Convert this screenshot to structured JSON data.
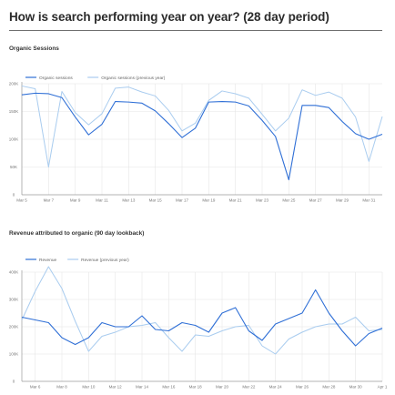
{
  "page": {
    "title": "How is search performing year on year? (28 day period)"
  },
  "colors": {
    "current": "#2f6fd6",
    "previous": "#a9ccef",
    "grid": "#e6e6e6",
    "axis": "#9a9a9a"
  },
  "chart_data": [
    {
      "type": "line",
      "title": "Organic Sessions",
      "categories": [
        "Mar 5",
        "Mar 6",
        "Mar 7",
        "Mar 8",
        "Mar 9",
        "Mar 10",
        "Mar 11",
        "Mar 12",
        "Mar 13",
        "Mar 14",
        "Mar 15",
        "Mar 16",
        "Mar 17",
        "Mar 18",
        "Mar 19",
        "Mar 20",
        "Mar 21",
        "Mar 22",
        "Mar 23",
        "Mar 24",
        "Mar 25",
        "Mar 26",
        "Mar 27",
        "Mar 28",
        "Mar 29",
        "Mar 30",
        "Mar 31",
        "Apr 1"
      ],
      "tick_labels": [
        "Mar 5",
        "Mar 7",
        "Mar 9",
        "Mar 11",
        "Mar 13",
        "Mar 15",
        "Mar 17",
        "Mar 19",
        "Mar 21",
        "Mar 23",
        "Mar 25",
        "Mar 27",
        "Mar 29",
        "Mar 31"
      ],
      "y_ticks": [
        "0",
        "50K",
        "100K",
        "150K",
        "200K"
      ],
      "ylim": [
        0,
        200000
      ],
      "legend": "top-left",
      "grid": true,
      "series": [
        {
          "name": "Organic sessions",
          "role": "current",
          "values": [
            180000,
            183000,
            182000,
            175000,
            140000,
            108000,
            127000,
            168000,
            167000,
            165000,
            151000,
            128000,
            103000,
            120000,
            167000,
            168000,
            167000,
            160000,
            134000,
            105000,
            27000,
            161000,
            161000,
            157000,
            132000,
            110000,
            100000,
            109000
          ]
        },
        {
          "name": "Organic sessions (previous year)",
          "role": "previous",
          "values": [
            196000,
            191000,
            50000,
            186000,
            148000,
            126000,
            146000,
            192000,
            194000,
            185000,
            178000,
            152000,
            115000,
            129000,
            170000,
            187000,
            182000,
            174000,
            145000,
            115000,
            138000,
            189000,
            179000,
            185000,
            174000,
            140000,
            60000,
            141000
          ]
        }
      ]
    },
    {
      "type": "line",
      "title": "Revenue attributed to organic (90 day lookback)",
      "categories": [
        "Mar 5",
        "Mar 6",
        "Mar 7",
        "Mar 8",
        "Mar 9",
        "Mar 10",
        "Mar 11",
        "Mar 12",
        "Mar 13",
        "Mar 14",
        "Mar 15",
        "Mar 16",
        "Mar 17",
        "Mar 18",
        "Mar 19",
        "Mar 20",
        "Mar 21",
        "Mar 22",
        "Mar 23",
        "Mar 24",
        "Mar 25",
        "Mar 26",
        "Mar 27",
        "Mar 28",
        "Mar 29",
        "Mar 30",
        "Mar 31",
        "Apr 1"
      ],
      "tick_labels": [
        "Mar 6",
        "Mar 8",
        "Mar 10",
        "Mar 12",
        "Mar 14",
        "Mar 16",
        "Mar 18",
        "Mar 20",
        "Mar 22",
        "Mar 24",
        "Mar 26",
        "Mar 28",
        "Mar 30",
        "Apr 1"
      ],
      "y_ticks": [
        "0",
        "100K",
        "200K",
        "300K",
        "400K"
      ],
      "ylim": [
        0,
        400000
      ],
      "legend": "top-left",
      "grid": true,
      "series": [
        {
          "name": "Revenue",
          "role": "current",
          "values": [
            235000,
            225000,
            215000,
            160000,
            135000,
            160000,
            215000,
            200000,
            200000,
            240000,
            190000,
            185000,
            215000,
            205000,
            180000,
            250000,
            270000,
            185000,
            150000,
            210000,
            230000,
            250000,
            335000,
            250000,
            185000,
            130000,
            175000,
            195000
          ]
        },
        {
          "name": "Revenue (previous year)",
          "role": "previous",
          "values": [
            225000,
            330000,
            420000,
            340000,
            220000,
            110000,
            165000,
            180000,
            200000,
            205000,
            215000,
            160000,
            110000,
            170000,
            165000,
            185000,
            200000,
            205000,
            130000,
            100000,
            155000,
            180000,
            200000,
            210000,
            210000,
            235000,
            185000,
            190000
          ]
        }
      ]
    }
  ]
}
